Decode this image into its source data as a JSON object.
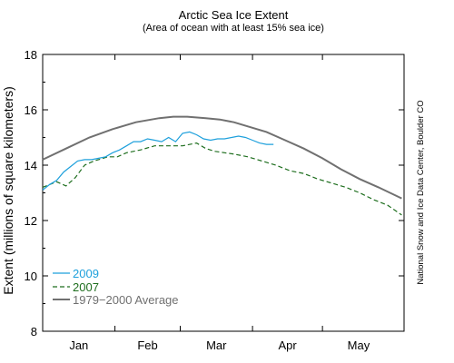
{
  "chart_data": {
    "type": "line",
    "title": "Arctic Sea Ice Extent",
    "subtitle": "(Area of ocean with at least 15% sea ice)",
    "ylabel": "Extent (millions of square kilometers)",
    "xlabel": "",
    "credit": "National Snow and Ice Data Center, Boulder CO",
    "ylim": [
      8,
      18
    ],
    "yticks": [
      "8",
      "10",
      "12",
      "14",
      "16",
      "18"
    ],
    "xlim": [
      0,
      155
    ],
    "categories": [
      "Jan",
      "Feb",
      "Mar",
      "Apr",
      "May"
    ],
    "category_centers": [
      15.5,
      45,
      74.5,
      105,
      135.5
    ],
    "grid": false,
    "legend_position": "bottom-left",
    "series": [
      {
        "name": "2009",
        "color": "#1ea0dc",
        "dash": "solid",
        "x": [
          0,
          3,
          6,
          9,
          12,
          15,
          18,
          21,
          24,
          27,
          30,
          33,
          36,
          39,
          42,
          45,
          48,
          51,
          54,
          57,
          60,
          63,
          66,
          69,
          72,
          75,
          78,
          81,
          84,
          87,
          90,
          93,
          96,
          99
        ],
        "y": [
          13.1,
          13.3,
          13.45,
          13.75,
          13.95,
          14.15,
          14.2,
          14.2,
          14.25,
          14.3,
          14.45,
          14.55,
          14.7,
          14.85,
          14.85,
          14.95,
          14.9,
          14.85,
          15.0,
          14.85,
          15.15,
          15.2,
          15.1,
          14.95,
          14.9,
          14.95,
          14.95,
          15.0,
          15.05,
          15.0,
          14.9,
          14.8,
          14.75,
          14.75
        ]
      },
      {
        "name": "2007",
        "color": "#1e6e1e",
        "dash": "dashed",
        "x": [
          0,
          6,
          10,
          14,
          18,
          22,
          28,
          32,
          36,
          42,
          48,
          54,
          60,
          66,
          70,
          74,
          78,
          82,
          88,
          94,
          100,
          106,
          112,
          118,
          124,
          130,
          136,
          142,
          148,
          154
        ],
        "y": [
          13.2,
          13.4,
          13.25,
          13.55,
          14.0,
          14.15,
          14.3,
          14.3,
          14.45,
          14.55,
          14.7,
          14.7,
          14.7,
          14.8,
          14.6,
          14.5,
          14.45,
          14.4,
          14.3,
          14.15,
          14.0,
          13.8,
          13.7,
          13.5,
          13.35,
          13.2,
          13.0,
          12.75,
          12.55,
          12.2
        ]
      },
      {
        "name": "1979−2000 Average",
        "color": "#707070",
        "dash": "solid",
        "x": [
          0,
          10,
          20,
          30,
          40,
          50,
          56,
          62,
          70,
          76,
          82,
          88,
          96,
          104,
          112,
          120,
          128,
          136,
          144,
          154
        ],
        "y": [
          14.2,
          14.6,
          15.0,
          15.3,
          15.55,
          15.7,
          15.75,
          15.75,
          15.7,
          15.65,
          15.55,
          15.4,
          15.2,
          14.9,
          14.6,
          14.25,
          13.85,
          13.5,
          13.2,
          12.8
        ]
      }
    ]
  }
}
